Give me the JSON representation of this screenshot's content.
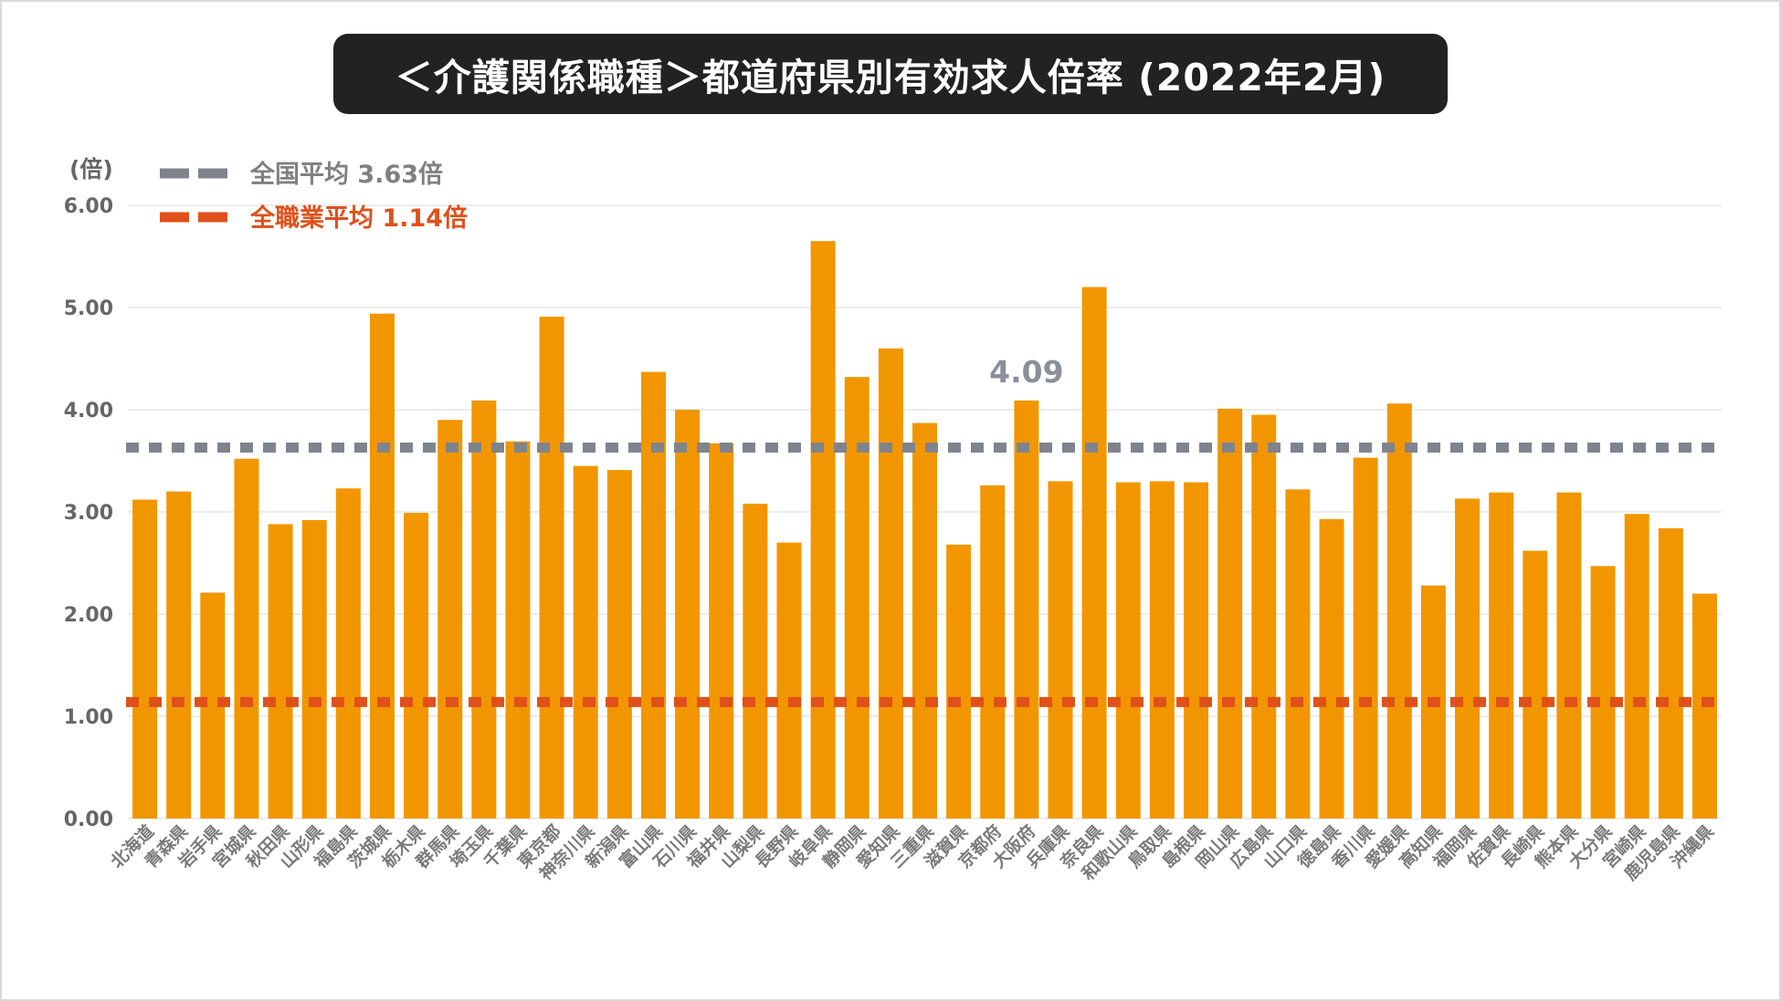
{
  "title": "＜介護関係職種＞都道府県別有効求人倍率 (2022年2月)",
  "colors": {
    "bar": "#F29600",
    "national_avg_line": "#7F848C",
    "all_jobs_avg_line": "#E0501A",
    "grid": "#e6e6e6",
    "title_bg": "#222222"
  },
  "chart_data": {
    "type": "bar",
    "title": "＜介護関係職種＞都道府県別有効求人倍率 (2022年2月)",
    "ylabel": "(倍)",
    "xlabel": "",
    "ylim": [
      0,
      6
    ],
    "yticks": [
      "0.00",
      "1.00",
      "2.00",
      "3.00",
      "4.00",
      "5.00",
      "6.00"
    ],
    "grid": true,
    "legend_position": "top-left",
    "categories": [
      "北海道",
      "青森県",
      "岩手県",
      "宮城県",
      "秋田県",
      "山形県",
      "福島県",
      "茨城県",
      "栃木県",
      "群馬県",
      "埼玉県",
      "千葉県",
      "東京都",
      "神奈川県",
      "新潟県",
      "富山県",
      "石川県",
      "福井県",
      "山梨県",
      "長野県",
      "岐阜県",
      "静岡県",
      "愛知県",
      "三重県",
      "滋賀県",
      "京都府",
      "大阪府",
      "兵庫県",
      "奈良県",
      "和歌山県",
      "鳥取県",
      "島根県",
      "岡山県",
      "広島県",
      "山口県",
      "徳島県",
      "香川県",
      "愛媛県",
      "高知県",
      "福岡県",
      "佐賀県",
      "長崎県",
      "熊本県",
      "大分県",
      "宮崎県",
      "鹿児島県",
      "沖縄県"
    ],
    "values": [
      3.12,
      3.2,
      2.21,
      3.52,
      2.88,
      2.92,
      3.23,
      4.94,
      2.99,
      3.9,
      4.09,
      3.69,
      4.91,
      3.45,
      3.41,
      4.37,
      4.0,
      3.67,
      3.08,
      2.7,
      5.65,
      4.32,
      4.6,
      3.87,
      2.68,
      3.26,
      4.09,
      3.3,
      5.2,
      3.29,
      3.3,
      3.29,
      4.01,
      3.95,
      3.22,
      2.93,
      3.53,
      4.06,
      2.28,
      3.13,
      3.19,
      2.62,
      3.19,
      2.47,
      2.98,
      2.84,
      2.2
    ],
    "reference_lines": [
      {
        "label": "全国平均 3.63倍",
        "value": 3.63
      },
      {
        "label": "全職業平均 1.14倍",
        "value": 1.14
      }
    ],
    "annotations": [
      {
        "category": "大阪府",
        "text": "4.09"
      }
    ]
  }
}
